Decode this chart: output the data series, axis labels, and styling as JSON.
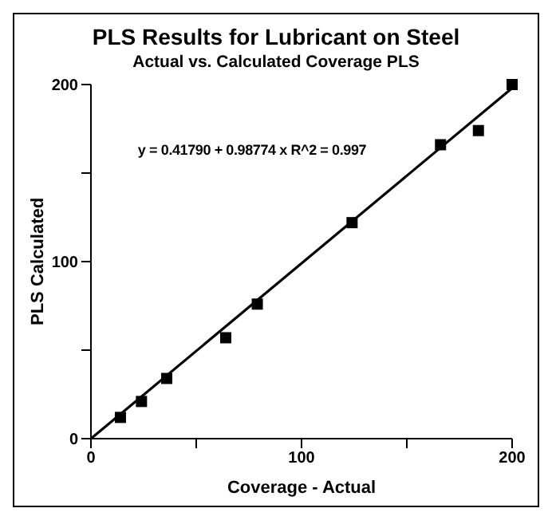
{
  "chart_data": {
    "type": "scatter",
    "title": "PLS Results for Lubricant on Steel",
    "subtitle": "Actual vs. Calculated Coverage PLS",
    "xlabel": "Coverage - Actual",
    "ylabel": "PLS Calculated",
    "annotations": [
      "y = 0.41790 + 0.98774 x R^2 = 0.997"
    ],
    "series": [
      {
        "color": "#000000",
        "marker": "square",
        "x": [
          14,
          24,
          36,
          64,
          79,
          124,
          166,
          184,
          200
        ],
        "values": [
          12,
          21,
          34,
          57,
          76,
          122,
          166,
          174,
          200
        ]
      },
      {
        "type": "line",
        "color": "#000000",
        "marker": "none",
        "x": [
          0,
          200
        ],
        "values": [
          0,
          198
        ]
      }
    ],
    "xlim": [
      0,
      200
    ],
    "ylim": [
      0,
      200
    ],
    "xticks": [
      0,
      {
        "value": 50,
        "label": null
      },
      100,
      {
        "value": 150,
        "label": null
      },
      200
    ],
    "yticks": [
      0,
      {
        "value": 50,
        "label": null
      },
      100,
      {
        "value": 150,
        "label": null
      },
      200
    ],
    "grid": false
  }
}
